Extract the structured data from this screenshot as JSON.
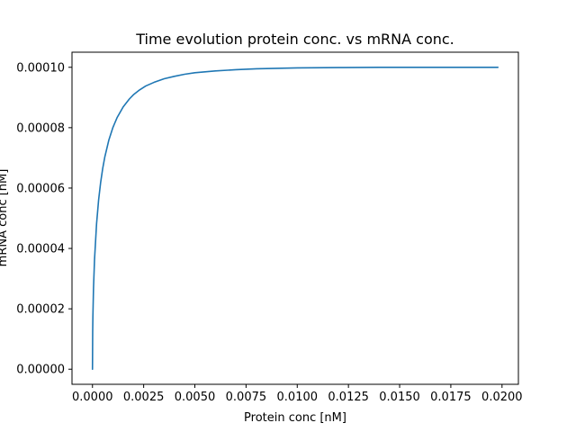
{
  "chart_data": {
    "type": "line",
    "title": "Time evolution protein conc. vs mRNA conc.",
    "xlabel": "Protein conc [nM]",
    "ylabel": "mRNA conc [nM]",
    "xlim": [
      -0.001,
      0.0208
    ],
    "ylim": [
      -5e-06,
      0.000105
    ],
    "xticks": [
      0.0,
      0.0025,
      0.005,
      0.0075,
      0.01,
      0.0125,
      0.015,
      0.0175,
      0.02
    ],
    "xtick_labels": [
      "0.0000",
      "0.0025",
      "0.0050",
      "0.0075",
      "0.0100",
      "0.0125",
      "0.0150",
      "0.0175",
      "0.0200"
    ],
    "yticks": [
      0.0,
      2e-05,
      4e-05,
      6e-05,
      8e-05,
      0.0001
    ],
    "ytick_labels": [
      "0.00000",
      "0.00002",
      "0.00004",
      "0.00006",
      "0.00008",
      "0.00010"
    ],
    "grid": false,
    "series": [
      {
        "color": "#1f77b4",
        "x": [
          0,
          1e-05,
          2e-05,
          5e-05,
          0.0001,
          0.0002,
          0.0003,
          0.0004,
          0.0005,
          0.0006,
          0.0008,
          0.001,
          0.0012,
          0.0015,
          0.0018,
          0.002,
          0.0023,
          0.0026,
          0.003,
          0.0035,
          0.004,
          0.0045,
          0.005,
          0.006,
          0.007,
          0.008,
          0.01,
          0.012,
          0.014,
          0.016,
          0.018,
          0.0198
        ],
        "y": [
          0,
          1.23e-05,
          1.73e-05,
          2.68e-05,
          3.63e-05,
          4.82e-05,
          5.61e-05,
          6.19e-05,
          6.65e-05,
          7.02e-05,
          7.59e-05,
          8.01e-05,
          8.33e-05,
          8.69e-05,
          8.95e-05,
          9.09e-05,
          9.25e-05,
          9.38e-05,
          9.5e-05,
          9.62e-05,
          9.7e-05,
          9.77e-05,
          9.82e-05,
          9.88e-05,
          9.92e-05,
          9.95e-05,
          9.98e-05,
          9.99e-05,
          0.0001,
          0.0001,
          0.0001,
          0.0001
        ]
      }
    ]
  }
}
